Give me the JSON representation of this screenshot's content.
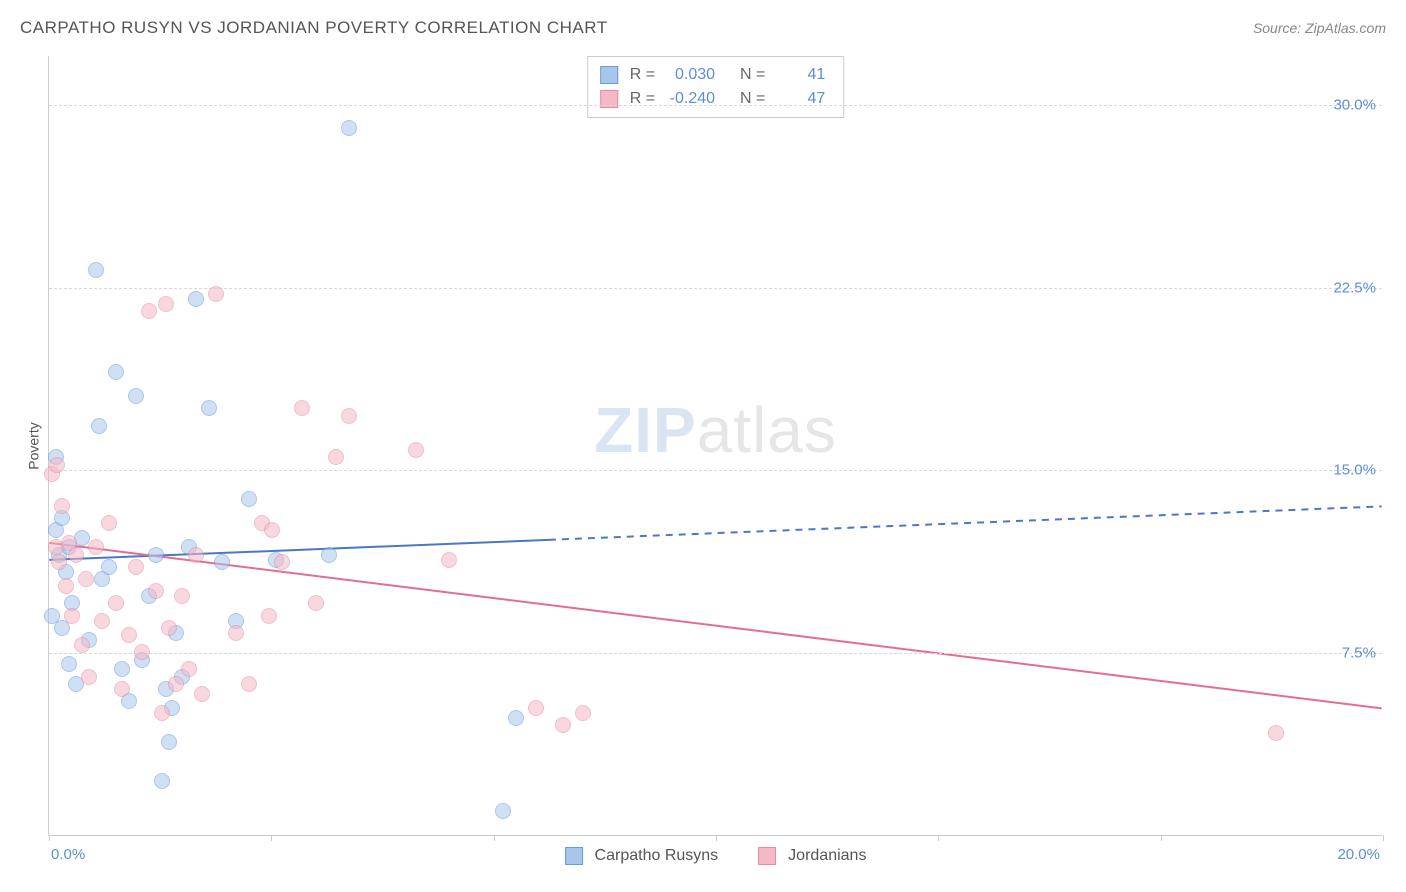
{
  "title": "CARPATHO RUSYN VS JORDANIAN POVERTY CORRELATION CHART",
  "source": "Source: ZipAtlas.com",
  "ylabel": "Poverty",
  "watermark": {
    "bold": "ZIP",
    "rest": "atlas"
  },
  "chart": {
    "type": "scatter",
    "xlim": [
      0,
      20
    ],
    "ylim": [
      0,
      32
    ],
    "x_ticks": [
      0,
      3.33,
      6.67,
      10,
      13.33,
      16.67,
      20
    ],
    "x_tick_labels_shown": {
      "min": "0.0%",
      "max": "20.0%"
    },
    "y_gridlines": [
      7.5,
      15.0,
      22.5,
      30.0
    ],
    "y_tick_labels": [
      "7.5%",
      "15.0%",
      "22.5%",
      "30.0%"
    ],
    "background_color": "#ffffff",
    "grid_color": "#d8d8d8",
    "axis_color": "#cccccc",
    "tick_label_color": "#5b8fd6",
    "point_radius": 8,
    "point_opacity": 0.55,
    "series": [
      {
        "name": "Carpatho Rusyns",
        "color_fill": "#a8c6ec",
        "color_stroke": "#6a9bd8",
        "R": "0.030",
        "N": "41",
        "trend": {
          "y_at_x0": 11.3,
          "y_at_x20": 13.5,
          "solid_until_x": 7.5,
          "color": "#4a78c4",
          "width": 2
        },
        "points": [
          [
            0.05,
            9.0
          ],
          [
            0.1,
            12.5
          ],
          [
            0.1,
            15.5
          ],
          [
            0.15,
            11.5
          ],
          [
            0.2,
            13.0
          ],
          [
            0.2,
            8.5
          ],
          [
            0.25,
            10.8
          ],
          [
            0.3,
            7.0
          ],
          [
            0.3,
            11.8
          ],
          [
            0.35,
            9.5
          ],
          [
            0.4,
            6.2
          ],
          [
            0.5,
            12.2
          ],
          [
            0.6,
            8.0
          ],
          [
            0.7,
            23.2
          ],
          [
            0.75,
            16.8
          ],
          [
            0.8,
            10.5
          ],
          [
            0.9,
            11.0
          ],
          [
            1.0,
            19.0
          ],
          [
            1.1,
            6.8
          ],
          [
            1.2,
            5.5
          ],
          [
            1.3,
            18.0
          ],
          [
            1.4,
            7.2
          ],
          [
            1.5,
            9.8
          ],
          [
            1.6,
            11.5
          ],
          [
            1.7,
            2.2
          ],
          [
            1.75,
            6.0
          ],
          [
            1.8,
            3.8
          ],
          [
            1.85,
            5.2
          ],
          [
            1.9,
            8.3
          ],
          [
            2.0,
            6.5
          ],
          [
            2.1,
            11.8
          ],
          [
            2.2,
            22.0
          ],
          [
            2.4,
            17.5
          ],
          [
            2.6,
            11.2
          ],
          [
            2.8,
            8.8
          ],
          [
            3.0,
            13.8
          ],
          [
            3.4,
            11.3
          ],
          [
            4.2,
            11.5
          ],
          [
            4.5,
            29.0
          ],
          [
            6.8,
            1.0
          ],
          [
            7.0,
            4.8
          ]
        ]
      },
      {
        "name": "Jordanians",
        "color_fill": "#f4b8c6",
        "color_stroke": "#e88aa3",
        "R": "-0.240",
        "N": "47",
        "trend": {
          "y_at_x0": 12.0,
          "y_at_x20": 5.2,
          "solid_until_x": 20,
          "color": "#e36e8f",
          "width": 2
        },
        "points": [
          [
            0.05,
            14.8
          ],
          [
            0.1,
            11.8
          ],
          [
            0.12,
            15.2
          ],
          [
            0.15,
            11.2
          ],
          [
            0.2,
            13.5
          ],
          [
            0.25,
            10.2
          ],
          [
            0.3,
            12.0
          ],
          [
            0.35,
            9.0
          ],
          [
            0.4,
            11.5
          ],
          [
            0.5,
            7.8
          ],
          [
            0.55,
            10.5
          ],
          [
            0.6,
            6.5
          ],
          [
            0.7,
            11.8
          ],
          [
            0.8,
            8.8
          ],
          [
            0.9,
            12.8
          ],
          [
            1.0,
            9.5
          ],
          [
            1.1,
            6.0
          ],
          [
            1.2,
            8.2
          ],
          [
            1.3,
            11.0
          ],
          [
            1.4,
            7.5
          ],
          [
            1.5,
            21.5
          ],
          [
            1.6,
            10.0
          ],
          [
            1.7,
            5.0
          ],
          [
            1.75,
            21.8
          ],
          [
            1.8,
            8.5
          ],
          [
            1.9,
            6.2
          ],
          [
            2.0,
            9.8
          ],
          [
            2.1,
            6.8
          ],
          [
            2.2,
            11.5
          ],
          [
            2.3,
            5.8
          ],
          [
            2.5,
            22.2
          ],
          [
            2.8,
            8.3
          ],
          [
            3.0,
            6.2
          ],
          [
            3.2,
            12.8
          ],
          [
            3.3,
            9.0
          ],
          [
            3.35,
            12.5
          ],
          [
            3.5,
            11.2
          ],
          [
            3.8,
            17.5
          ],
          [
            4.0,
            9.5
          ],
          [
            4.3,
            15.5
          ],
          [
            4.5,
            17.2
          ],
          [
            5.5,
            15.8
          ],
          [
            6.0,
            11.3
          ],
          [
            7.3,
            5.2
          ],
          [
            7.7,
            4.5
          ],
          [
            8.0,
            5.0
          ],
          [
            18.4,
            4.2
          ]
        ]
      }
    ]
  },
  "legend": {
    "series1_label": "Carpatho Rusyns",
    "series2_label": "Jordanians"
  },
  "stats_labels": {
    "R": "R =",
    "N": "N ="
  }
}
